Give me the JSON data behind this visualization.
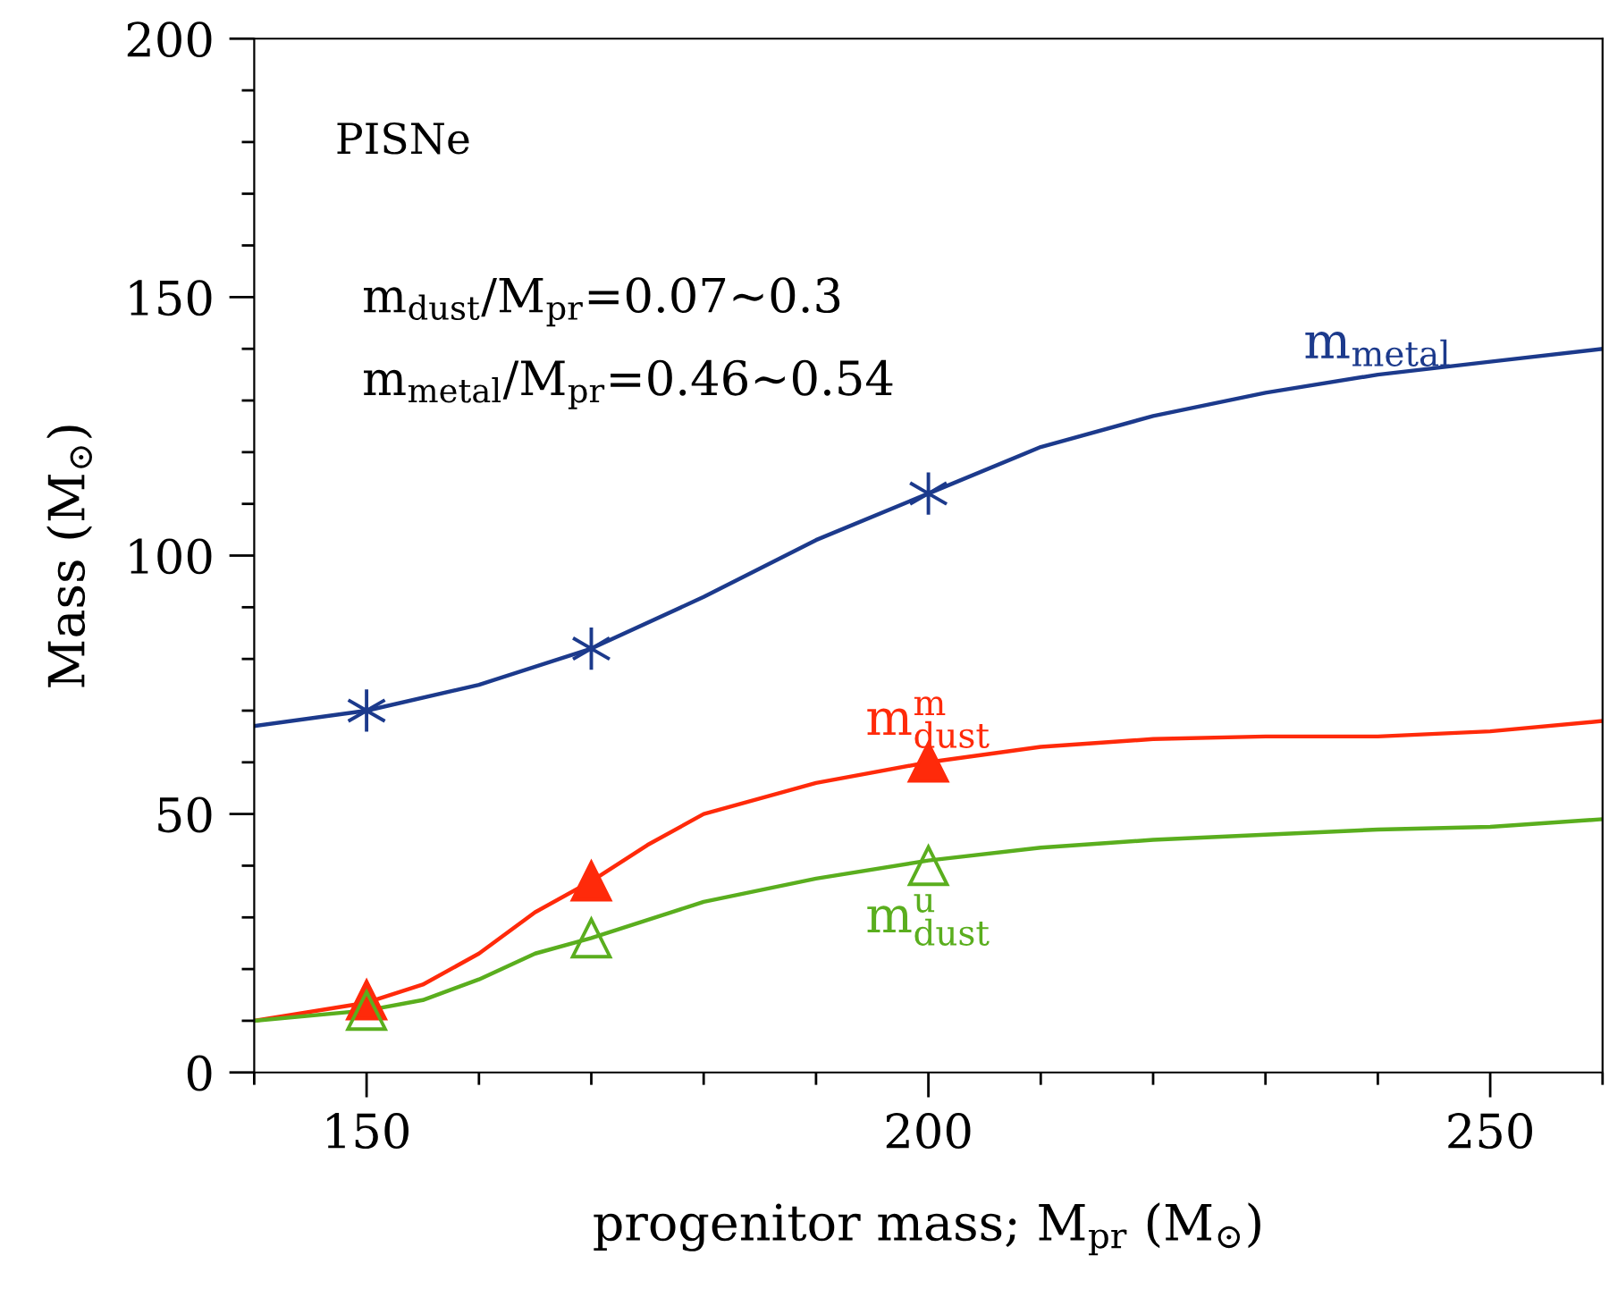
{
  "chart_data": {
    "type": "line",
    "xlabel": "progenitor mass; M$_{pr}$ (M$_{⊙}$)",
    "ylabel": "Mass (M$_{⊙}$)",
    "xlim": [
      140,
      260
    ],
    "ylim": [
      0,
      200
    ],
    "xticks": [
      150,
      200,
      250
    ],
    "yticks": [
      0,
      50,
      100,
      150,
      200
    ],
    "grid": false,
    "legend": false,
    "annotations": [
      "PISNe",
      "m$_{dust}$/M$_{pr}$=0.07~0.3",
      "m$_{metal}$/M$_{pr}$=0.46~0.54"
    ],
    "series": [
      {
        "name": "m$_{metal}$",
        "marker": "none",
        "color": "#1c3a8c",
        "x": [
          140,
          150,
          160,
          170,
          180,
          190,
          200,
          210,
          220,
          230,
          240,
          250,
          260
        ],
        "values": [
          67,
          70,
          75,
          82,
          92,
          103,
          112,
          121,
          127,
          131.5,
          135,
          137.5,
          140
        ]
      },
      {
        "name": "m$^{m}$$_{dust}$",
        "marker": "none",
        "color": "#ff2a0a",
        "x": [
          140,
          150,
          155,
          160,
          165,
          170,
          175,
          180,
          190,
          200,
          210,
          220,
          230,
          240,
          250,
          260
        ],
        "values": [
          10,
          13.5,
          17,
          23,
          31,
          37,
          44,
          50,
          56,
          60,
          63,
          64.5,
          65,
          65,
          66,
          68
        ]
      },
      {
        "name": "m$^{u}$$_{dust}$",
        "marker": "none",
        "color": "#5aae1e",
        "x": [
          140,
          150,
          155,
          160,
          165,
          170,
          180,
          190,
          200,
          210,
          220,
          230,
          240,
          250,
          260
        ],
        "values": [
          10,
          12,
          14,
          18,
          23,
          26,
          33,
          37.5,
          41,
          43.5,
          45,
          46,
          47,
          47.5,
          49
        ]
      },
      {
        "type": "scatter",
        "color": "#1c3a8c",
        "marker": "cross",
        "x": [
          150,
          170,
          200
        ],
        "values": [
          70,
          82,
          112
        ]
      },
      {
        "type": "scatter",
        "color": "#ff2a0a",
        "marker": "triangle",
        "x": [
          150,
          170,
          200
        ],
        "values": [
          14,
          37,
          60
        ]
      },
      {
        "type": "scatter",
        "color": "#5aae1e",
        "marker": "triangle",
        "x": [
          150,
          170,
          200
        ],
        "values": [
          12,
          26,
          40
        ]
      }
    ]
  }
}
